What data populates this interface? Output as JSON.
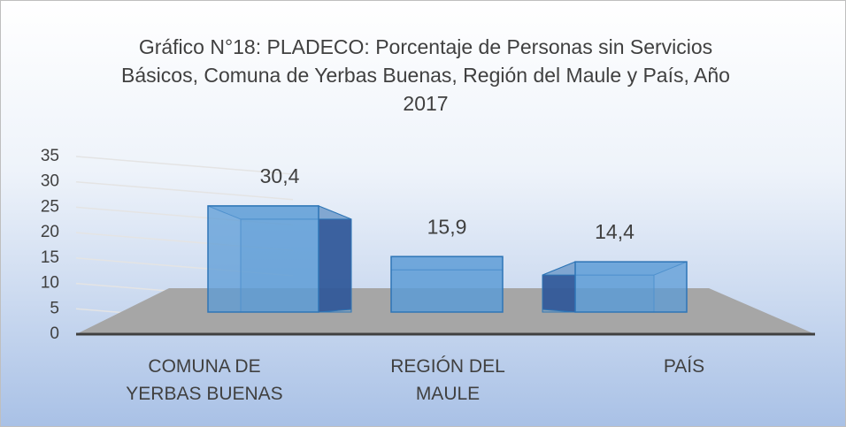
{
  "chart_data": {
    "type": "bar3d",
    "title": "Gráfico N°18: PLADECO: Porcentaje de Personas sin Servicios Básicos, Comuna de Yerbas Buenas, Región del Maule y País, Año 2017",
    "categories": [
      "COMUNA DE YERBAS BUENAS",
      "REGIÓN DEL MAULE",
      "PAÍS"
    ],
    "values": [
      30.4,
      15.9,
      14.4
    ],
    "value_labels": [
      "30,4",
      "15,9",
      "14,4"
    ],
    "color": "#5b9bd5",
    "ylim": [
      0,
      35
    ],
    "yticks": [
      0,
      5,
      10,
      15,
      20,
      25,
      30,
      35
    ],
    "grid": true
  }
}
